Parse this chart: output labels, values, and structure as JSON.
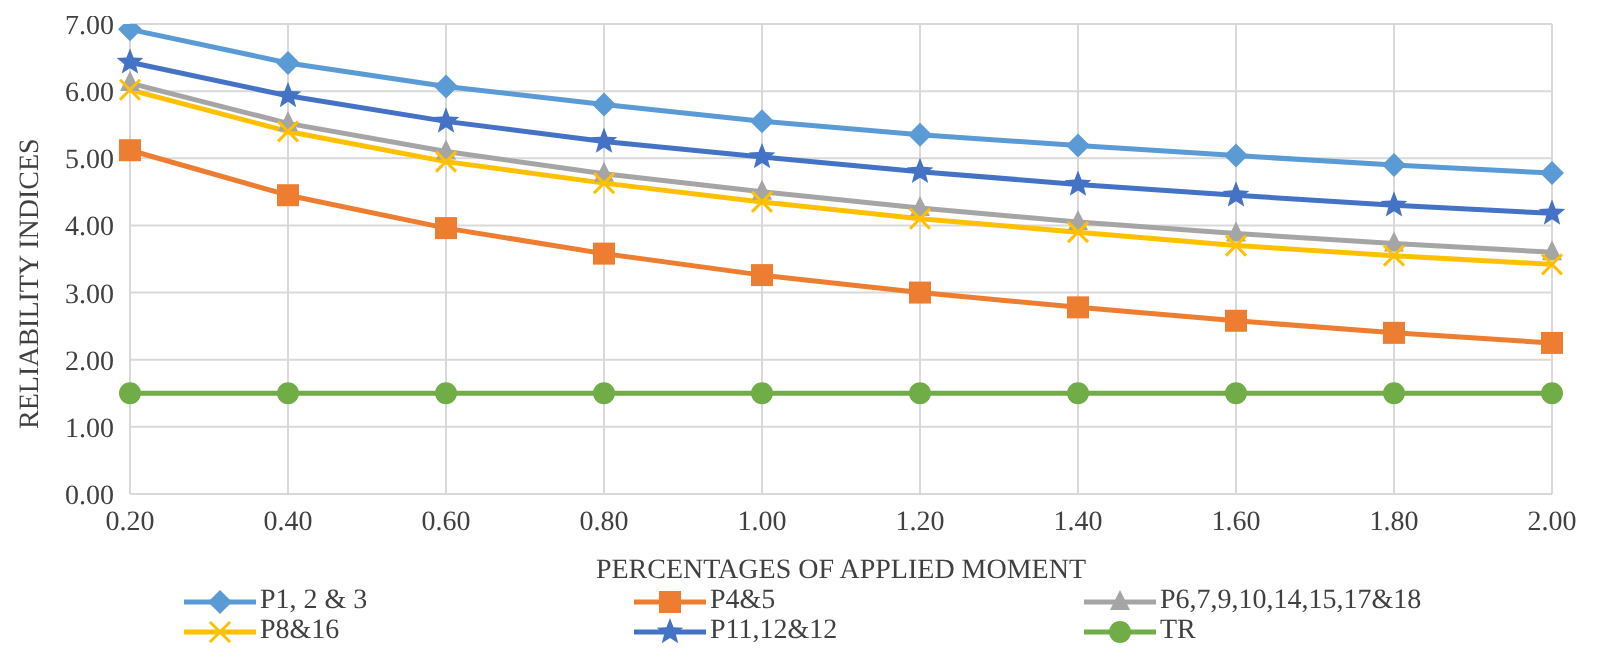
{
  "chart_data": {
    "type": "line",
    "xlabel": "PERCENTAGES OF APPLIED MOMENT",
    "ylabel": "RELIABILITY INDICES",
    "categories": [
      "0.20",
      "0.40",
      "0.60",
      "0.80",
      "1.00",
      "1.20",
      "1.40",
      "1.60",
      "1.80",
      "2.00"
    ],
    "ylim": [
      0,
      7
    ],
    "yticks": [
      {
        "value": 0,
        "label": "0.00"
      },
      {
        "value": 1,
        "label": "1.00"
      },
      {
        "value": 2,
        "label": "2.00"
      },
      {
        "value": 3,
        "label": "3.00"
      },
      {
        "value": 4,
        "label": "4.00"
      },
      {
        "value": 5,
        "label": "5.00"
      },
      {
        "value": 6,
        "label": "6.00"
      },
      {
        "value": 7,
        "label": "7.00"
      }
    ],
    "grid": true,
    "legend": "bottom",
    "line_style": "solid",
    "series": [
      {
        "name": "P1, 2  & 3",
        "color": "#5b9bd5",
        "marker": "diamond",
        "values": [
          6.92,
          6.42,
          6.07,
          5.8,
          5.55,
          5.35,
          5.19,
          5.04,
          4.9,
          4.78
        ]
      },
      {
        "name": "P4&5",
        "color": "#ed7d31",
        "marker": "square",
        "values": [
          5.12,
          4.45,
          3.96,
          3.58,
          3.26,
          3.0,
          2.78,
          2.58,
          2.4,
          2.25
        ]
      },
      {
        "name": "P6,7,9,10,14,15,17&18",
        "color": "#a5a5a5",
        "marker": "triangle",
        "values": [
          6.12,
          5.52,
          5.1,
          4.77,
          4.5,
          4.26,
          4.05,
          3.88,
          3.73,
          3.6
        ]
      },
      {
        "name": "P8&16",
        "color": "#ffc000",
        "marker": "cross",
        "values": [
          6.02,
          5.4,
          4.95,
          4.63,
          4.35,
          4.1,
          3.9,
          3.7,
          3.55,
          3.42
        ]
      },
      {
        "name": "P11,12&12",
        "color": "#4472c4",
        "marker": "star",
        "values": [
          6.43,
          5.93,
          5.55,
          5.25,
          5.02,
          4.8,
          4.61,
          4.45,
          4.3,
          4.18
        ]
      },
      {
        "name": "TR",
        "color": "#70ad47",
        "marker": "circle",
        "values": [
          1.5,
          1.5,
          1.5,
          1.5,
          1.5,
          1.5,
          1.5,
          1.5,
          1.5,
          1.5
        ]
      }
    ]
  }
}
